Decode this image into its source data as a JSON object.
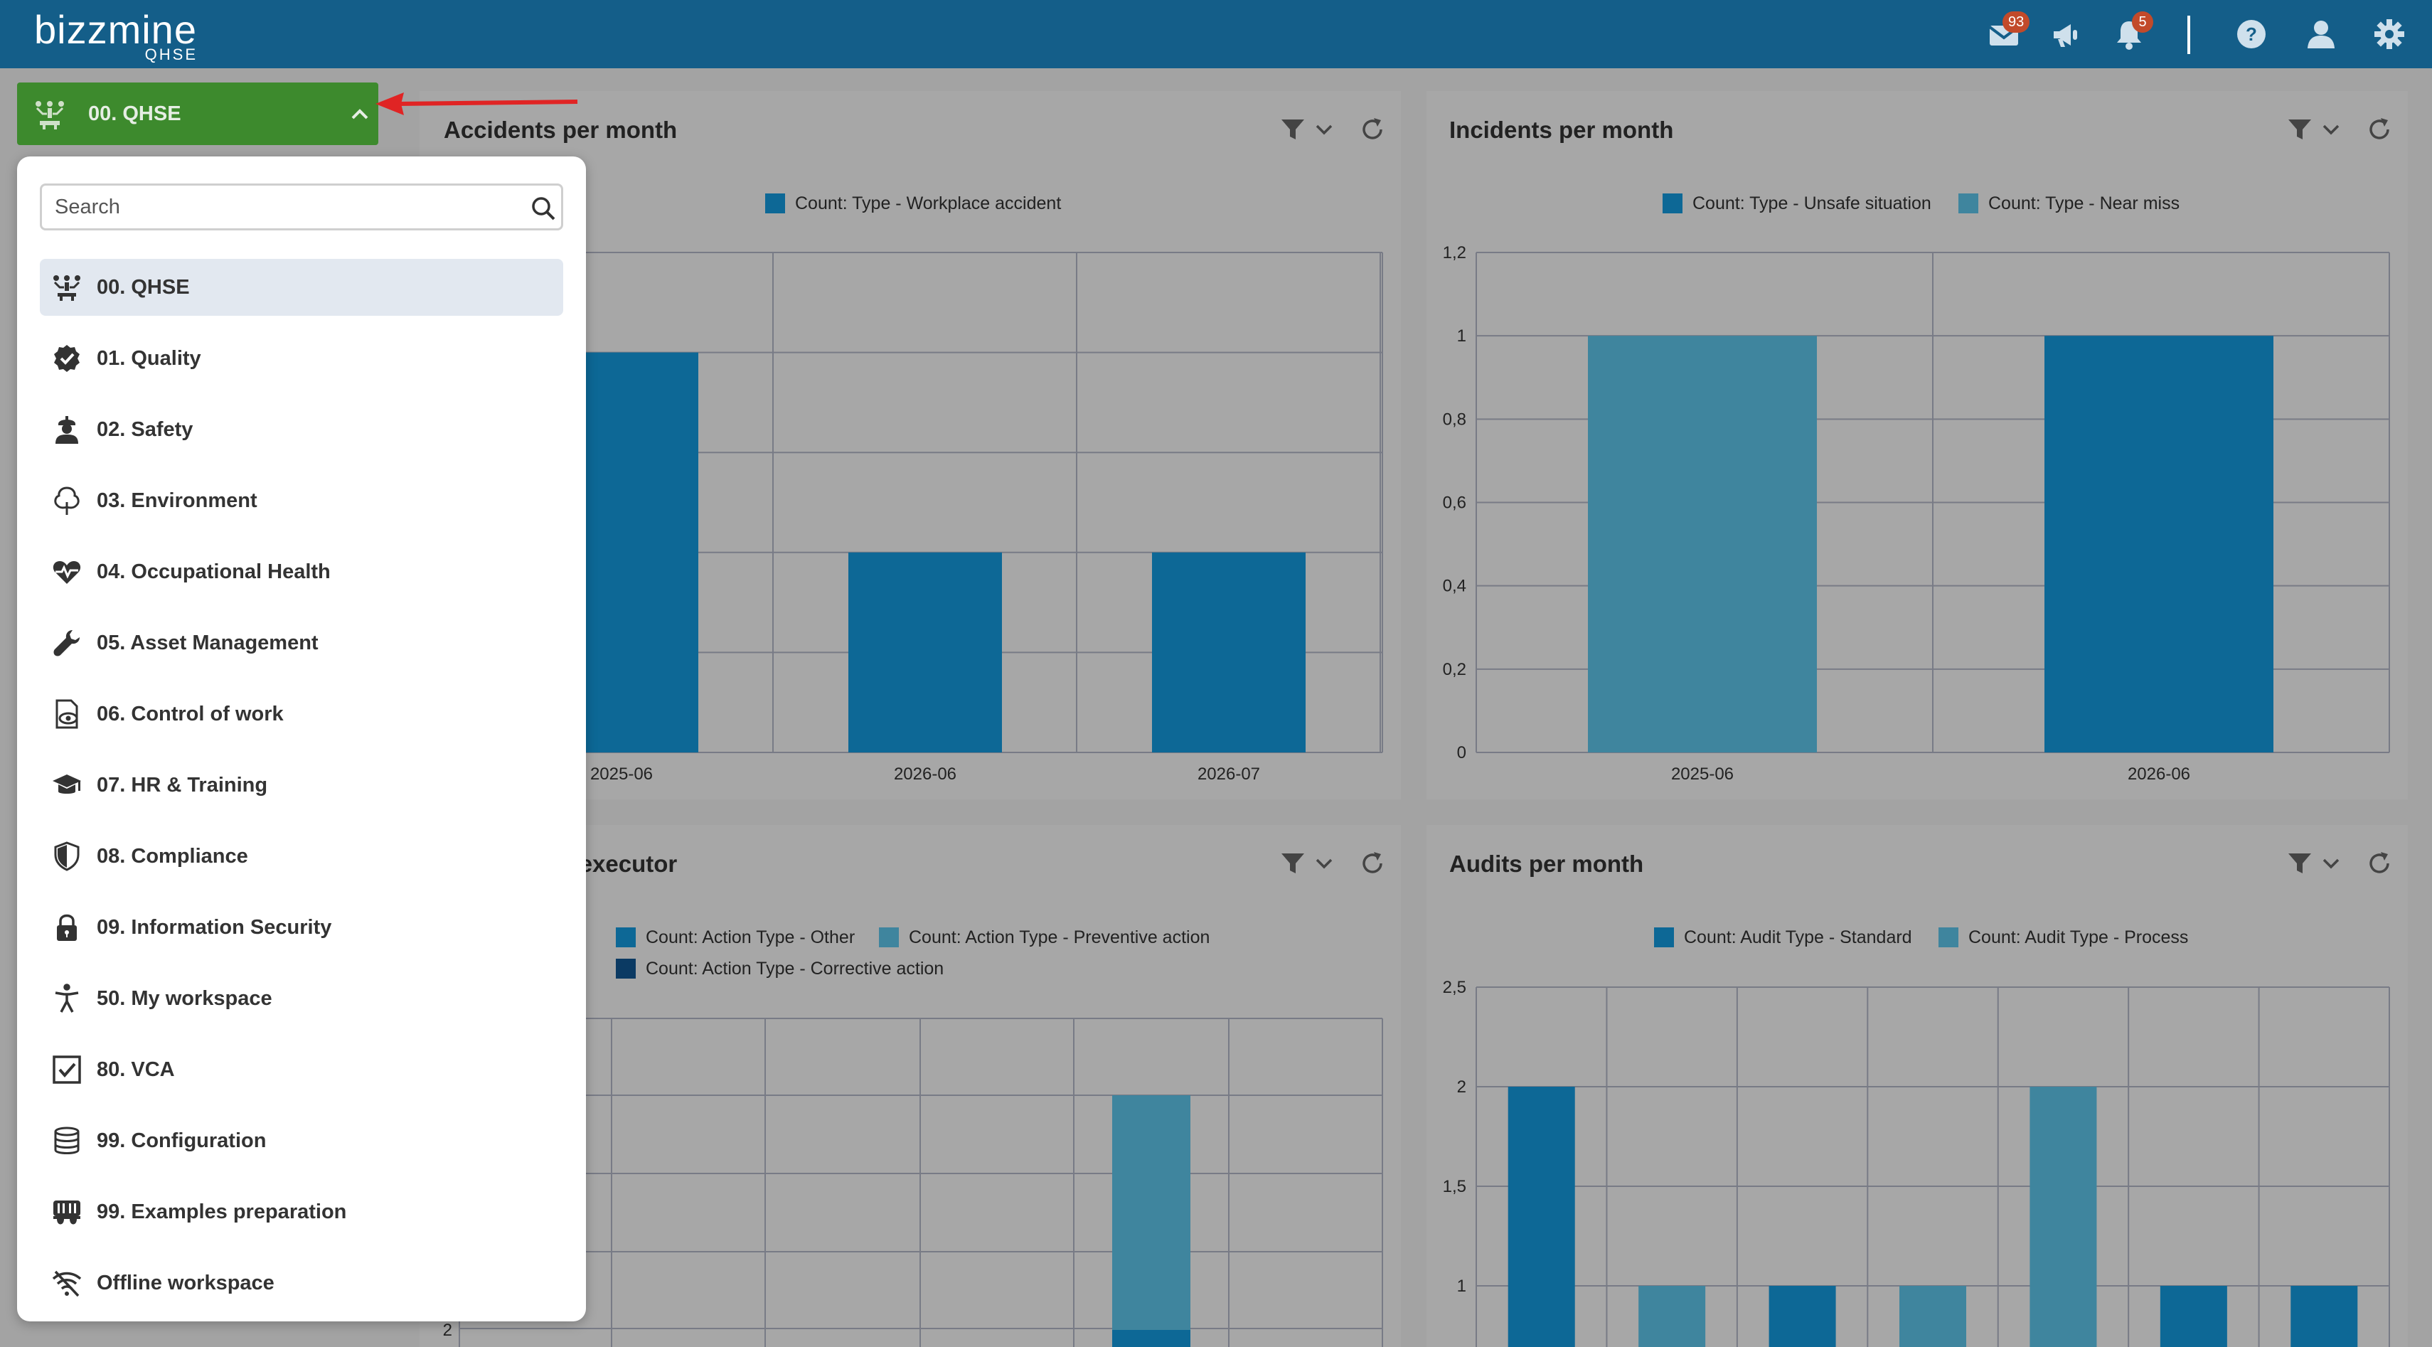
{
  "header": {
    "logo_main": "bizzmine",
    "logo_sub": "QHSE",
    "mail_badge": "93",
    "notification_badge": "5",
    "icons": [
      "mail-icon",
      "megaphone-icon",
      "bell-icon",
      "help-icon",
      "user-icon",
      "gear-icon"
    ]
  },
  "module_switcher": {
    "current": "00. QHSE",
    "search_placeholder": "Search",
    "items": [
      {
        "label": "00. QHSE",
        "icon": "qhse-icon",
        "selected": true
      },
      {
        "label": "01. Quality",
        "icon": "quality-badge-icon"
      },
      {
        "label": "02. Safety",
        "icon": "worker-icon"
      },
      {
        "label": "03. Environment",
        "icon": "tree-icon"
      },
      {
        "label": "04. Occupational Health",
        "icon": "heartbeat-icon"
      },
      {
        "label": "05. Asset Management",
        "icon": "wrench-icon"
      },
      {
        "label": "06. Control of work",
        "icon": "document-eye-icon"
      },
      {
        "label": "07. HR & Training",
        "icon": "graduation-cap-icon"
      },
      {
        "label": "08. Compliance",
        "icon": "shield-icon"
      },
      {
        "label": "09. Information Security",
        "icon": "lock-icon"
      },
      {
        "label": "50. My workspace",
        "icon": "person-icon"
      },
      {
        "label": "80. VCA",
        "icon": "checkbox-icon"
      },
      {
        "label": "99. Configuration",
        "icon": "database-icon"
      },
      {
        "label": "99. Examples preparation",
        "icon": "mask-icon"
      },
      {
        "label": "Offline workspace",
        "icon": "wifi-off-icon"
      }
    ]
  },
  "colors": {
    "header": "#145e89",
    "module_button": "#3d8a2d",
    "series_dark": "#0d6896",
    "series_mid": "#3f859e",
    "series_navy": "#0b3a63",
    "overlay_bg": "#a3a3a3"
  },
  "cards": {
    "accidents": {
      "title": "Accidents per month"
    },
    "incidents": {
      "title": "Incidents per month"
    },
    "actions": {
      "title": "Actions per executor"
    },
    "audits": {
      "title": "Audits per month"
    }
  },
  "chart_data": [
    {
      "type": "bar",
      "title": "Accidents per month",
      "categories": [
        "2025-06",
        "2026-06",
        "2026-07"
      ],
      "series": [
        {
          "name": "Count: Type - Workplace accident",
          "values": [
            2,
            1,
            1
          ]
        }
      ],
      "ylim": [
        0,
        2.5
      ],
      "grid": true,
      "legend": "top"
    },
    {
      "type": "bar",
      "title": "Incidents per month",
      "categories": [
        "2025-06",
        "2026-06"
      ],
      "series": [
        {
          "name": "Count: Type - Unsafe situation",
          "values": [
            0,
            1
          ]
        },
        {
          "name": "Count: Type - Near miss",
          "values": [
            1,
            0
          ]
        }
      ],
      "y_ticks": [
        "0",
        "0,2",
        "0,4",
        "0,6",
        "0,8",
        "1",
        "1,2"
      ],
      "ylim": [
        0,
        1.2
      ],
      "grid": true,
      "legend": "top"
    },
    {
      "type": "bar",
      "title": "Actions per executor",
      "stacked": true,
      "series": [
        {
          "name": "Count: Action Type - Other"
        },
        {
          "name": "Count: Action Type - Preventive action"
        },
        {
          "name": "Count: Action Type - Corrective action"
        }
      ],
      "y_ticks_visible": [
        "2"
      ],
      "grid": true,
      "legend": "top"
    },
    {
      "type": "bar",
      "title": "Audits per month",
      "series": [
        {
          "name": "Count: Audit Type - Standard",
          "values": [
            2,
            null,
            1,
            null,
            null,
            1,
            1
          ]
        },
        {
          "name": "Count: Audit Type - Process",
          "values": [
            null,
            1,
            null,
            1,
            2,
            null,
            null
          ]
        }
      ],
      "y_ticks": [
        "1",
        "1,5",
        "2",
        "2,5"
      ],
      "ylim": [
        0,
        2.5
      ],
      "grid": true,
      "legend": "top"
    }
  ]
}
